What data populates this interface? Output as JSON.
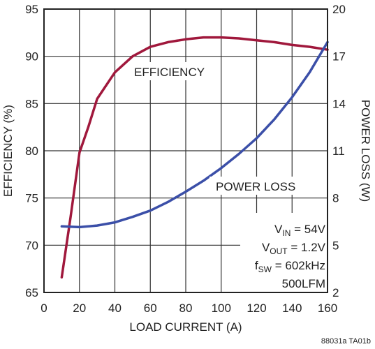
{
  "chart_data": {
    "type": "line",
    "title": "",
    "xlabel": "LOAD CURRENT (A)",
    "ylabel": "EFFICIENCY (%)",
    "y2label": "POWER LOSS (W)",
    "xlim": [
      0,
      160
    ],
    "ylim": [
      65,
      95
    ],
    "y2lim": [
      2,
      20
    ],
    "xticks": [
      "0",
      "20",
      "40",
      "60",
      "80",
      "100",
      "120",
      "140",
      "160"
    ],
    "yticks": [
      "65",
      "70",
      "75",
      "80",
      "85",
      "90",
      "95"
    ],
    "y2ticks": [
      "2",
      "5",
      "8",
      "11",
      "14",
      "17",
      "20"
    ],
    "grid": true,
    "series": [
      {
        "name": "EFFICIENCY",
        "axis": "left",
        "color": "#a0183c",
        "x": [
          10,
          15,
          20,
          25,
          30,
          40,
          50,
          60,
          70,
          80,
          90,
          100,
          110,
          120,
          130,
          140,
          150,
          160
        ],
        "y": [
          66.6,
          73.0,
          79.8,
          82.5,
          85.5,
          88.3,
          90.0,
          91.0,
          91.5,
          91.8,
          92.0,
          92.0,
          91.9,
          91.7,
          91.5,
          91.2,
          91.0,
          90.7
        ]
      },
      {
        "name": "POWER LOSS",
        "axis": "right",
        "color": "#3b4fa8",
        "x": [
          10,
          20,
          30,
          40,
          50,
          60,
          70,
          80,
          90,
          100,
          110,
          120,
          130,
          140,
          150,
          160
        ],
        "y": [
          6.2,
          6.15,
          6.25,
          6.45,
          6.8,
          7.2,
          7.75,
          8.4,
          9.1,
          9.9,
          10.8,
          11.8,
          13.0,
          14.4,
          16.0,
          17.9
        ]
      }
    ]
  },
  "annotations": {
    "efficiency": "EFFICIENCY",
    "power_loss": "POWER LOSS"
  },
  "conditions": {
    "vin_main": "V",
    "vin_sub": "IN",
    "vin_rest": " = 54V",
    "vout_main": "V",
    "vout_sub": "OUT",
    "vout_rest": " = 1.2V",
    "fsw_main": "f",
    "fsw_sub": "SW",
    "fsw_rest": " = 602kHz",
    "airflow": "500LFM"
  },
  "figure_ref": "88031a TA01b"
}
